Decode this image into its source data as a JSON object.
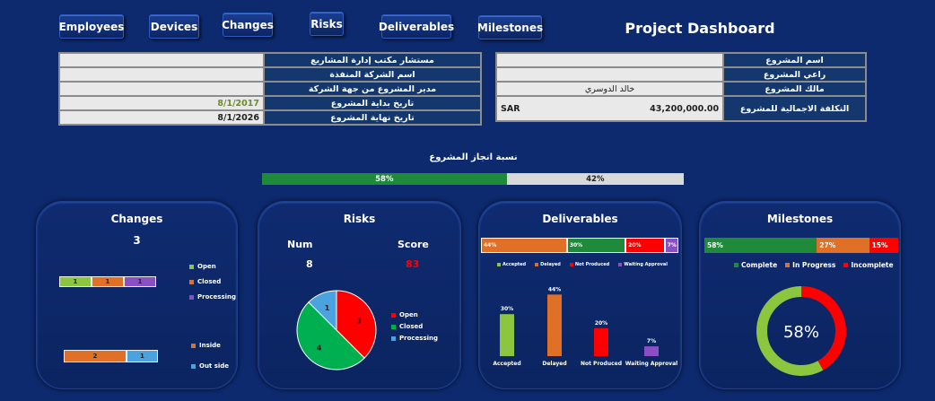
{
  "nav": {
    "employees": "Employees",
    "devices": "Devices",
    "changes": "Changes",
    "risks": "Risks",
    "deliverables": "Deliverables",
    "milestones": "Milestones"
  },
  "title": "Project Dashboard",
  "info_left": {
    "consultant_label": "مستشار مكتب إدارة المشاريع",
    "consultant_value": "",
    "executor_label": "اسم الشركة المنفذة",
    "executor_value": "",
    "manager_label": "مدير المشروع من جهة الشركة",
    "manager_value": "",
    "start_label": "تاريخ بداية المشروع",
    "start_value": "8/1/2017",
    "end_label": "تاريخ نهاية المشروع",
    "end_value": "8/1/2026"
  },
  "info_right": {
    "name_label": "اسم المشروع",
    "name_value": "",
    "sponsor_label": "راعي المشروع",
    "sponsor_value": "",
    "owner_label": "مالك المشروع",
    "owner_value": "خالد الدوسري",
    "cost_label": "التكلفة الاجمالية للمشروع",
    "cost_value": "43,200,000.00",
    "currency": "SAR"
  },
  "progress": {
    "title": "نسبة انجاز المشروع",
    "done_pct": 58,
    "done_label": "58%",
    "remaining_label": "42%"
  },
  "colors": {
    "green": "#1e8a3a",
    "orange": "#e07025",
    "purple": "#8b4fc4",
    "lime": "#8cc63f",
    "red": "#ff0000",
    "blue": "#4aa3df",
    "gray": "#d9d9d9"
  },
  "changes": {
    "title": "Changes",
    "total": "3",
    "status_bar": [
      {
        "label": "1",
        "value": 1,
        "color": "#8cc63f"
      },
      {
        "label": "1",
        "value": 1,
        "color": "#e07025"
      },
      {
        "label": "1",
        "value": 1,
        "color": "#8b4fc4"
      }
    ],
    "status_legend": [
      "Open",
      "Closed",
      "Processing"
    ],
    "scope_bar": [
      {
        "label": "2",
        "value": 2,
        "color": "#e07025"
      },
      {
        "label": "1",
        "value": 1,
        "color": "#4aa3df"
      }
    ],
    "scope_legend": [
      "Inside",
      "Out side"
    ]
  },
  "risks": {
    "title": "Risks",
    "num_label": "Num",
    "score_label": "Score",
    "num_value": "8",
    "score_value": "83",
    "pie_legend": [
      "Open",
      "Closed",
      "Processing"
    ]
  },
  "deliverables": {
    "title": "Deliverables",
    "stack_labels": [
      "44%",
      "30%",
      "20%",
      "7%"
    ],
    "legend": [
      "Accepted",
      "Delayed",
      "Not Produced",
      "Waiting Approval"
    ]
  },
  "milestones": {
    "title": "Milestones",
    "bar_labels": [
      "58%",
      "27%",
      "15%"
    ],
    "legend": [
      "Complete",
      "In Progress",
      "Incomplete"
    ],
    "center_label": "58%"
  },
  "chart_data": [
    {
      "type": "bar",
      "categories": [
        "Open",
        "Closed",
        "Processing"
      ],
      "values": [
        1,
        1,
        1
      ],
      "title": "Changes"
    },
    {
      "type": "bar",
      "categories": [
        "Inside",
        "Out side"
      ],
      "values": [
        2,
        1
      ],
      "title": "Changes"
    },
    {
      "type": "pie",
      "categories": [
        "Open",
        "Closed",
        "Processing"
      ],
      "values": [
        3,
        4,
        1
      ],
      "colors": [
        "#ff0000",
        "#00b050",
        "#4aa3df"
      ],
      "title": "Risks"
    },
    {
      "type": "bar",
      "categories": [
        "Accepted",
        "Delayed",
        "Not Produced",
        "Waiting Approval"
      ],
      "values": [
        30,
        44,
        20,
        7
      ],
      "value_labels": [
        "30%",
        "44%",
        "20%",
        "7%"
      ],
      "colors": [
        "#8cc63f",
        "#e07025",
        "#ff0000",
        "#8b4fc4"
      ],
      "ylim": [
        0,
        50
      ],
      "title": "Deliverables"
    },
    {
      "type": "pie",
      "categories": [
        "Complete",
        "Incomplete"
      ],
      "values": [
        58,
        42
      ],
      "colors": [
        "#8cc63f",
        "#ff0000"
      ],
      "title": "Milestones"
    }
  ]
}
